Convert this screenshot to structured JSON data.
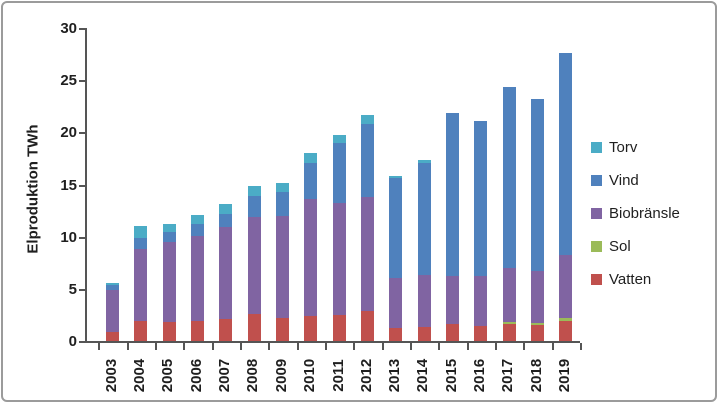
{
  "y_axis": {
    "title": "Elproduktion TWh",
    "ticks": [
      0,
      5,
      10,
      15,
      20,
      25,
      30
    ]
  },
  "legend": [
    {
      "label": "Torv",
      "color": "#4BACC6"
    },
    {
      "label": "Vind",
      "color": "#4F81BD"
    },
    {
      "label": "Biobränsle",
      "color": "#8064A2"
    },
    {
      "label": "Sol",
      "color": "#9BBB59"
    },
    {
      "label": "Vatten",
      "color": "#C0504D"
    }
  ],
  "chart_data": {
    "type": "bar",
    "subtype": "stacked",
    "title": "",
    "xlabel": "",
    "ylabel": "Elproduktion TWh",
    "ylim": [
      0,
      30
    ],
    "grid": false,
    "legend_position": "right",
    "categories": [
      "2003",
      "2004",
      "2005",
      "2006",
      "2007",
      "2008",
      "2009",
      "2010",
      "2011",
      "2012",
      "2013",
      "2014",
      "2015",
      "2016",
      "2017",
      "2018",
      "2019"
    ],
    "series": [
      {
        "name": "Vatten",
        "color": "#C0504D",
        "values": [
          0.85,
          1.9,
          1.8,
          1.95,
          2.1,
          2.6,
          2.2,
          2.4,
          2.5,
          2.85,
          1.2,
          1.3,
          1.65,
          1.45,
          1.65,
          1.55,
          1.95
        ]
      },
      {
        "name": "Sol",
        "color": "#9BBB59",
        "values": [
          0,
          0,
          0,
          0,
          0,
          0,
          0,
          0,
          0,
          0,
          0,
          0,
          0,
          0,
          0.15,
          0.15,
          0.25
        ]
      },
      {
        "name": "Biobränsle",
        "color": "#8064A2",
        "values": [
          4.05,
          6.9,
          7.65,
          8.15,
          8.8,
          9.3,
          9.8,
          11.2,
          10.7,
          10.95,
          4.8,
          5.0,
          4.55,
          4.8,
          5.2,
          5.05,
          6.0
        ]
      },
      {
        "name": "Vind",
        "color": "#4F81BD",
        "values": [
          0.45,
          1.1,
          0.95,
          1.1,
          1.3,
          2.0,
          2.3,
          3.5,
          5.75,
          7.0,
          9.6,
          10.8,
          15.65,
          14.85,
          17.3,
          16.45,
          19.45
        ]
      },
      {
        "name": "Torv",
        "color": "#4BACC6",
        "values": [
          0.2,
          1.15,
          0.8,
          0.9,
          0.95,
          1.0,
          0.85,
          0.9,
          0.8,
          0.9,
          0.25,
          0.25,
          0,
          0,
          0,
          0,
          0
        ]
      }
    ],
    "totals": [
      5.55,
      11.05,
      11.2,
      12.1,
      13.15,
      14.9,
      15.15,
      18.0,
      19.75,
      21.7,
      15.85,
      17.35,
      21.85,
      21.1,
      24.3,
      23.2,
      27.65
    ]
  }
}
